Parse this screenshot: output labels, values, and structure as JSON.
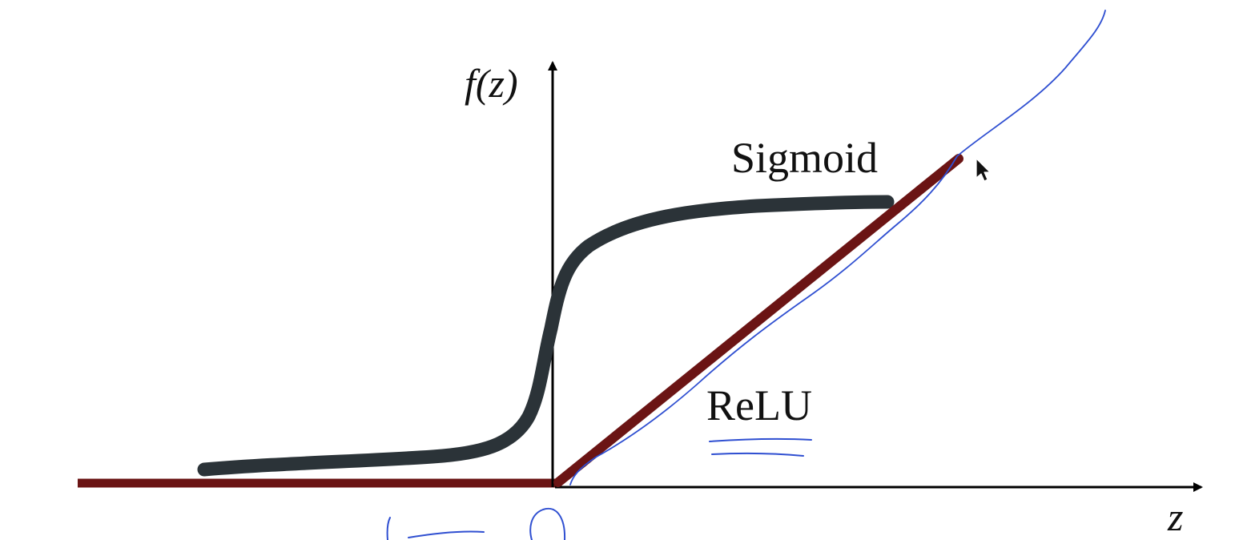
{
  "axes": {
    "y_label": "f(z)",
    "x_label": "z",
    "color": "#000000"
  },
  "curves": {
    "sigmoid": {
      "label": "Sigmoid",
      "color": "#2b3338"
    },
    "relu": {
      "label": "ReLU",
      "color": "#6b1414"
    }
  },
  "annotations": {
    "ink_color": "#2f4fd1",
    "cursor_icon": "mouse-pointer-icon"
  }
}
